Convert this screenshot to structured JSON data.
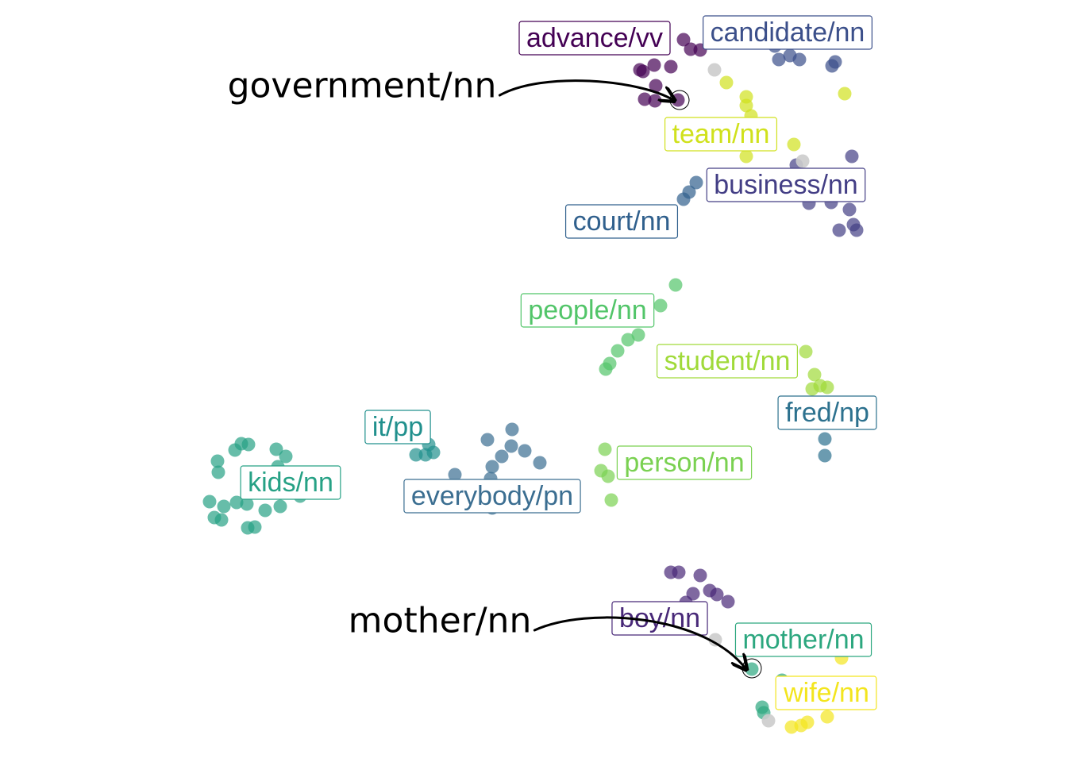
{
  "chart_data": {
    "type": "scatter",
    "title": "",
    "xlabel": "",
    "ylabel": "",
    "grid": false,
    "legend": "none",
    "x_domain": [
      0,
      1344
    ],
    "y_domain": [
      0,
      960
    ],
    "neutral_color": "#cccccc",
    "clusters": [
      {
        "name": "advance/vv",
        "color": "#440154",
        "label_pos": [
          749,
          48
        ],
        "points": [
          [
            806,
            88
          ],
          [
            824,
            82
          ],
          [
            845,
            84
          ],
          [
            861,
            50
          ],
          [
            870,
            62
          ],
          [
            882,
            63
          ],
          [
            826,
            108
          ],
          [
            812,
            125
          ],
          [
            825,
            127
          ],
          [
            810,
            90
          ],
          [
            854,
            126
          ]
        ]
      },
      {
        "name": "candidate/nn",
        "color": "#3b4f8a",
        "label_pos": [
          992,
          41
        ],
        "points": [
          [
            981,
            75
          ],
          [
            995,
            70
          ],
          [
            1007,
            75
          ],
          [
            1048,
            83
          ],
          [
            1052,
            78
          ],
          [
            976,
            58
          ]
        ]
      },
      {
        "name": "team/nn",
        "color": "#d0e11c",
        "label_pos": [
          908,
          169
        ],
        "points": [
          [
            915,
            104
          ],
          [
            940,
            122
          ],
          [
            940,
            133
          ],
          [
            946,
            146
          ],
          [
            1000,
            182
          ],
          [
            940,
            197
          ],
          [
            1064,
            118
          ]
        ]
      },
      {
        "name": "business/nn",
        "color": "#433e85",
        "label_pos": [
          990,
          233
        ],
        "points": [
          [
            1073,
            197
          ],
          [
            1003,
            208
          ],
          [
            1019,
            256
          ],
          [
            1047,
            255
          ],
          [
            1070,
            264
          ],
          [
            1057,
            290
          ],
          [
            1075,
            283
          ],
          [
            1079,
            290
          ]
        ]
      },
      {
        "name": "court/nn",
        "color": "#30608d",
        "label_pos": [
          783,
          279
        ],
        "points": [
          [
            868,
            242
          ],
          [
            877,
            230
          ],
          [
            861,
            251
          ]
        ]
      },
      {
        "name": "people/nn",
        "color": "#52c569",
        "label_pos": [
          740,
          391
        ],
        "points": [
          [
            851,
            359
          ],
          [
            832,
            385
          ],
          [
            804,
            422
          ],
          [
            791,
            428
          ],
          [
            778,
            442
          ],
          [
            768,
            458
          ],
          [
            763,
            465
          ]
        ]
      },
      {
        "name": "student/nn",
        "color": "#a0da39",
        "label_pos": [
          916,
          455
        ],
        "points": [
          [
            1015,
            443
          ],
          [
            1026,
            472
          ],
          [
            1033,
            486
          ],
          [
            1023,
            490
          ],
          [
            1042,
            488
          ]
        ]
      },
      {
        "name": "fred/np",
        "color": "#2c718e",
        "label_pos": [
          1042,
          520
        ],
        "points": [
          [
            1039,
            553
          ],
          [
            1039,
            574
          ]
        ]
      },
      {
        "name": "it/pp",
        "color": "#21908d",
        "label_pos": [
          501,
          538
        ],
        "points": [
          [
            524,
            573
          ],
          [
            536,
            573
          ],
          [
            546,
            570
          ],
          [
            540,
            560
          ]
        ]
      },
      {
        "name": "everybody/pn",
        "color": "#3b6e91",
        "label_pos": [
          620,
          625
        ],
        "points": [
          [
            614,
            554
          ],
          [
            645,
            541
          ],
          [
            644,
            562
          ],
          [
            632,
            575
          ],
          [
            661,
            568
          ],
          [
            680,
            583
          ],
          [
            620,
            588
          ],
          [
            573,
            598
          ],
          [
            618,
            603
          ],
          [
            620,
            640
          ]
        ]
      },
      {
        "name": "person/nn",
        "color": "#7ad151",
        "label_pos": [
          862,
          583
        ],
        "points": [
          [
            762,
            566
          ],
          [
            757,
            593
          ],
          [
            766,
            600
          ],
          [
            770,
            630
          ]
        ]
      },
      {
        "name": "kids/nn",
        "color": "#26a185",
        "label_pos": [
          366,
          608
        ],
        "points": [
          [
            304,
            559
          ],
          [
            313,
            560
          ],
          [
            296,
            567
          ],
          [
            348,
            566
          ],
          [
            360,
            575
          ],
          [
            274,
            581
          ],
          [
            275,
            595
          ],
          [
            350,
            588
          ],
          [
            264,
            632
          ],
          [
            282,
            638
          ],
          [
            298,
            633
          ],
          [
            311,
            635
          ],
          [
            334,
            643
          ],
          [
            353,
            638
          ],
          [
            270,
            652
          ],
          [
            279,
            655
          ],
          [
            312,
            665
          ],
          [
            321,
            664
          ],
          [
            378,
            625
          ]
        ]
      },
      {
        "name": "boy/nn",
        "color": "#482878",
        "label_pos": [
          831,
          779
        ],
        "points": [
          [
            845,
            721
          ],
          [
            855,
            721
          ],
          [
            882,
            725
          ],
          [
            894,
            744
          ],
          [
            903,
            749
          ],
          [
            917,
            758
          ],
          [
            873,
            748
          ],
          [
            864,
            759
          ]
        ]
      },
      {
        "name": "mother/nn",
        "color": "#2ca77f",
        "label_pos": [
          1012,
          806
        ],
        "points": [
          [
            947,
            843
          ],
          [
            960,
            891
          ],
          [
            962,
            898
          ],
          [
            985,
            857
          ]
        ]
      },
      {
        "name": "wife/nn",
        "color": "#f3e51e",
        "label_pos": [
          1041,
          873
        ],
        "points": [
          [
            1060,
            829
          ],
          [
            1042,
            903
          ],
          [
            1017,
            910
          ],
          [
            1009,
            914
          ],
          [
            997,
            916
          ]
        ]
      },
      {
        "name": "other",
        "color": "#cccccc",
        "points": [
          [
            900,
            88
          ],
          [
            1011,
            203
          ],
          [
            901,
            806
          ],
          [
            968,
            908
          ]
        ]
      }
    ],
    "annotations": [
      {
        "text": "government/nn",
        "text_pos": [
          456,
          108
        ],
        "target": [
          856,
          126
        ]
      },
      {
        "text": "mother/nn",
        "text_pos": [
          554,
          782
        ],
        "target": [
          947,
          842
        ]
      }
    ]
  }
}
